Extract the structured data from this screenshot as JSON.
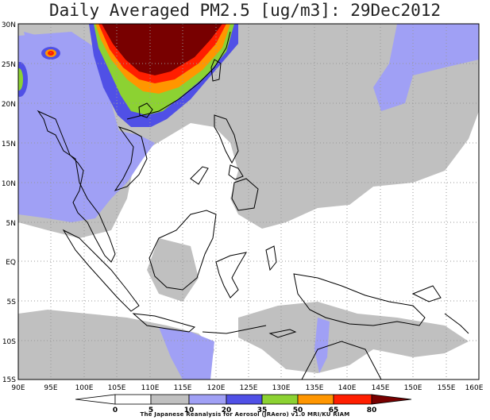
{
  "title": "Daily Averaged PM2.5 [ug/m3]: 29Dec2012",
  "lat_labels": [
    "30N",
    "25N",
    "20N",
    "15N",
    "10N",
    "5N",
    "EQ",
    "5S",
    "10S",
    "15S"
  ],
  "lon_labels": [
    "90E",
    "95E",
    "100E",
    "105E",
    "110E",
    "115E",
    "120E",
    "125E",
    "130E",
    "135E",
    "140E",
    "145E",
    "150E",
    "155E",
    "160E"
  ],
  "colorbar": {
    "tick_labels": [
      "0",
      "5",
      "10",
      "20",
      "35",
      "50",
      "65",
      "80"
    ],
    "colors": [
      "#ffffff",
      "#c0c0c0",
      "#a0a0f5",
      "#5050e6",
      "#8cd232",
      "#ff9600",
      "#ff1e00",
      "#780000"
    ]
  },
  "credit": "The Japanese Reanalysis for Aerosol (JRAero) v1.0 MRI/KU RIAM",
  "palette": {
    "land_outline": "#000000",
    "grid": "#999999"
  }
}
